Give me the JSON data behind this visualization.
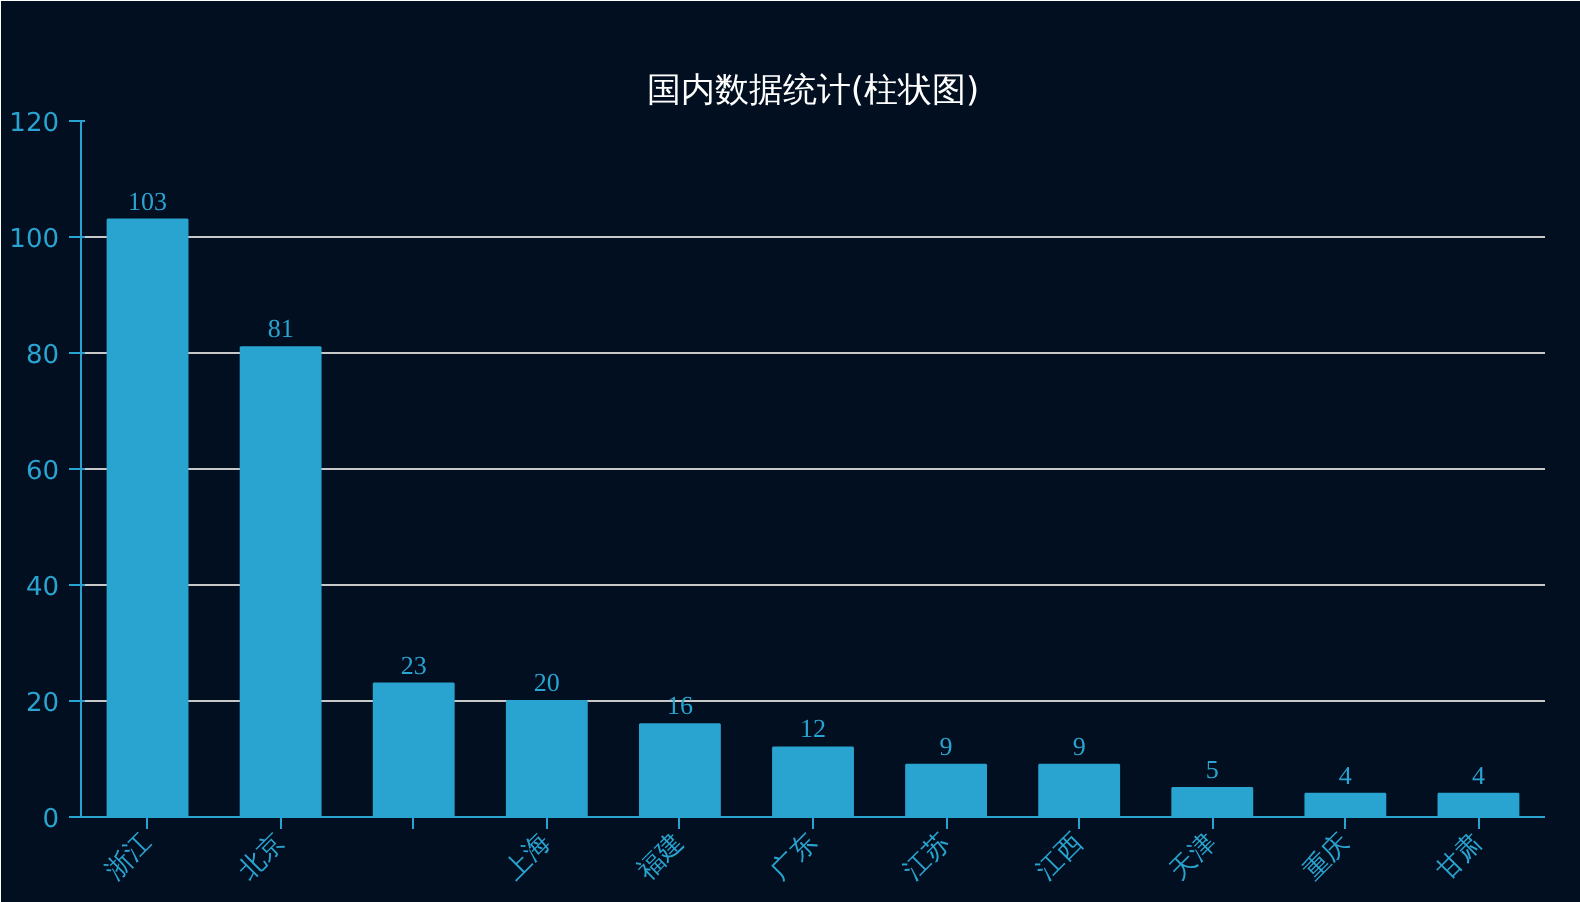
{
  "chart_data": {
    "type": "bar",
    "title": "国内数据统计(柱状图)",
    "categories": [
      "浙江",
      "北京",
      null,
      "上海",
      "福建",
      "广东",
      "江苏",
      "江西",
      "天津",
      "重庆",
      "甘肃"
    ],
    "values": [
      103,
      81,
      23,
      20,
      16,
      12,
      9,
      9,
      5,
      4,
      4
    ],
    "color": "#29a4d0",
    "ylim": [
      0,
      120
    ],
    "yticks": [
      0,
      20,
      40,
      60,
      80,
      100,
      120
    ],
    "grid": "y",
    "data_labels": true
  }
}
